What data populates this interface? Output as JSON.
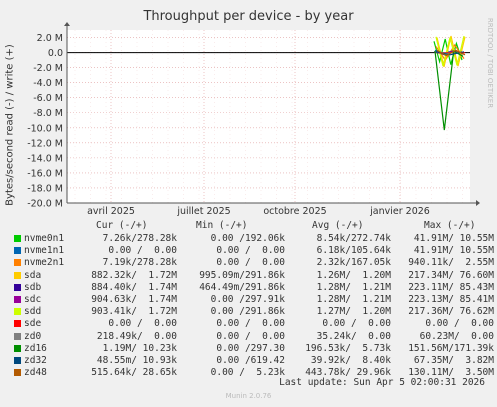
{
  "chart_data": {
    "type": "line",
    "title": "Throughput per device - by year",
    "ylabel": "Bytes/second read (-) / write (+)",
    "ylim": [
      -20,
      3
    ],
    "yunit": "M",
    "y_ticks": [
      "2.0 M",
      "0.0",
      "-2.0 M",
      "-4.0 M",
      "-6.0 M",
      "-8.0 M",
      "-10.0 M",
      "-12.0 M",
      "-14.0 M",
      "-16.0 M",
      "-18.0 M",
      "-20.0 M"
    ],
    "x_ticks": [
      "avril 2025",
      "juillet 2025",
      "octobre 2025",
      "janvier 2026"
    ],
    "grid": true,
    "series": [
      {
        "name": "nvme0n1",
        "color": "#00cc00",
        "values": [
          1.5,
          -1.2,
          1.8,
          -1.6,
          1.2,
          -1.0
        ]
      },
      {
        "name": "nvme1n1",
        "color": "#0066b3",
        "values": [
          0.3,
          -0.3,
          0.4,
          -0.2
        ]
      },
      {
        "name": "nvme2n1",
        "color": "#ff8000",
        "values": [
          0.8,
          -1.0,
          1.0,
          -0.8
        ]
      },
      {
        "name": "sda",
        "color": "#ffcc00",
        "values": [
          2.0,
          -1.9,
          2.2,
          -1.8,
          2.1
        ]
      },
      {
        "name": "sdb",
        "color": "#330099",
        "values": [
          0.1,
          -0.2,
          0.2,
          -0.1
        ]
      },
      {
        "name": "sdc",
        "color": "#990099",
        "values": [
          0.1,
          -0.2,
          0.2,
          -0.1
        ]
      },
      {
        "name": "sdd",
        "color": "#ccff00",
        "values": [
          2.1,
          -1.8,
          2.0,
          -1.7,
          2.2
        ]
      },
      {
        "name": "sde",
        "color": "#ff0000",
        "values": [
          0,
          0,
          0,
          0
        ]
      },
      {
        "name": "zd0",
        "color": "#808080",
        "values": [
          0.1,
          -0.1,
          0.1
        ]
      },
      {
        "name": "zd16",
        "color": "#008f00",
        "values": [
          0.2,
          -10.3,
          0.2,
          -0.5
        ]
      },
      {
        "name": "zd32",
        "color": "#00487d",
        "values": [
          0.1,
          -0.3,
          0.1
        ]
      },
      {
        "name": "zd48",
        "color": "#b35a00",
        "values": [
          0.3,
          -0.4,
          0.3,
          -0.3
        ]
      }
    ]
  },
  "legend": {
    "headers": {
      "cur": "Cur (-/+)",
      "min": "Min (-/+)",
      "avg": "Avg (-/+)",
      "max": "Max (-/+)"
    },
    "rows": [
      {
        "name": "nvme0n1",
        "cur": "7.26k/278.28k",
        "min": "0.00 /192.06k",
        "avg": "8.54k/272.74k",
        "max": "41.91M/ 10.55M"
      },
      {
        "name": "nvme1n1",
        "cur": "0.00 /  0.00",
        "min": "0.00 /  0.00",
        "avg": "6.18k/105.64k",
        "max": "41.91M/ 10.55M"
      },
      {
        "name": "nvme2n1",
        "cur": "7.19k/278.28k",
        "min": "0.00 /  0.00",
        "avg": "2.32k/167.05k",
        "max": "940.11k/  2.55M"
      },
      {
        "name": "sda",
        "cur": "882.32k/  1.72M",
        "min": "995.09m/291.86k",
        "avg": "1.26M/  1.20M",
        "max": "217.34M/ 76.60M"
      },
      {
        "name": "sdb",
        "cur": "884.40k/  1.74M",
        "min": "464.49m/291.86k",
        "avg": "1.28M/  1.21M",
        "max": "223.11M/ 85.43M"
      },
      {
        "name": "sdc",
        "cur": "904.63k/  1.74M",
        "min": "0.00 /297.91k",
        "avg": "1.28M/  1.21M",
        "max": "223.13M/ 85.41M"
      },
      {
        "name": "sdd",
        "cur": "903.41k/  1.72M",
        "min": "0.00 /291.86k",
        "avg": "1.27M/  1.20M",
        "max": "217.36M/ 76.62M"
      },
      {
        "name": "sde",
        "cur": "0.00 /  0.00",
        "min": "0.00 /  0.00",
        "avg": "0.00 /  0.00",
        "max": "0.00 /  0.00"
      },
      {
        "name": "zd0",
        "cur": "218.49k/  0.00",
        "min": "0.00 /  0.00",
        "avg": "35.24k/  0.00",
        "max": "60.23M/  0.00"
      },
      {
        "name": "zd16",
        "cur": "1.19M/ 10.23k",
        "min": "0.00 /297.30",
        "avg": "196.53k/  5.73k",
        "max": "151.56M/171.39k"
      },
      {
        "name": "zd32",
        "cur": "48.55m/ 10.93k",
        "min": "0.00 /619.42",
        "avg": "39.92k/  8.40k",
        "max": "67.35M/  3.82M"
      },
      {
        "name": "zd48",
        "cur": "515.64k/ 28.65k",
        "min": "0.00 /  5.23k",
        "avg": "443.78k/ 29.96k",
        "max": "130.11M/  3.50M"
      }
    ]
  },
  "last_update": "Last update: Sun Apr  5 02:00:31 2026",
  "watermark": "RRDTOOL / TOBI OETIKER",
  "footer": "Munin 2.0.76"
}
